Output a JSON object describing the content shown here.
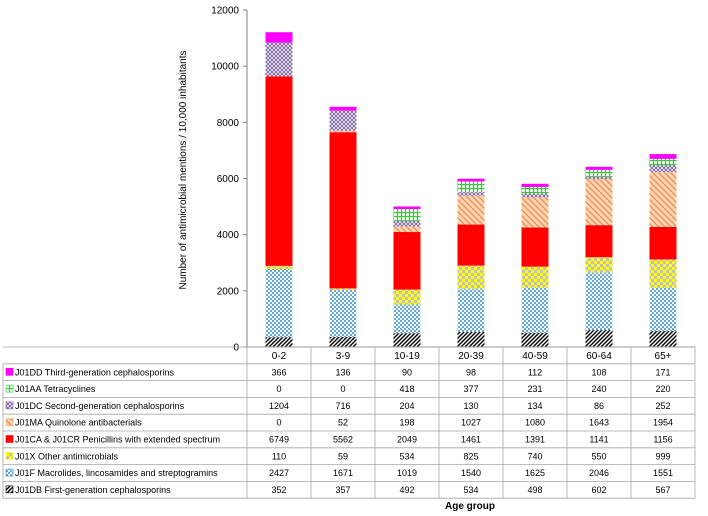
{
  "chart_data": {
    "type": "bar",
    "stacked": true,
    "xlabel": "Age group",
    "ylabel": "Number of antimicrobial mentions / 10,000 inhabitants",
    "ylim": [
      0,
      12000
    ],
    "yticks": [
      "0",
      "2000",
      "4000",
      "6000",
      "8000",
      "10000",
      "12000"
    ],
    "categories": [
      "0-2",
      "3-9",
      "10-19",
      "20-39",
      "40-59",
      "60-64",
      "65+"
    ],
    "legend_placement": "data table below chart",
    "series": [
      {
        "name": "J01DB First-generation cephalosporins",
        "color": "#000000",
        "pattern": "diagonal-hatch",
        "values": [
          352,
          357,
          492,
          534,
          498,
          602,
          567
        ]
      },
      {
        "name": "J01F Macrolides, lincosamides and streptogramins",
        "color": "#2c8ed6",
        "pattern": "dots",
        "values": [
          2427,
          1671,
          1019,
          1540,
          1625,
          2046,
          1551
        ]
      },
      {
        "name": "J01X Other antimicrobials",
        "color": "#ffff00",
        "pattern": "checker",
        "values": [
          110,
          59,
          534,
          825,
          740,
          550,
          999
        ]
      },
      {
        "name": "J01CA & J01CR Penicillins with extended spectrum",
        "color": "#ff0000",
        "pattern": "solid",
        "values": [
          6749,
          5562,
          2049,
          1461,
          1391,
          1141,
          1156
        ]
      },
      {
        "name": "J01MA Quinolone antibacterials",
        "color": "#f5a86e",
        "pattern": "diagonal-stripes",
        "values": [
          0,
          52,
          198,
          1027,
          1080,
          1643,
          1954
        ]
      },
      {
        "name": "J01DC Second-generation cephalosporins",
        "color": "#8064a2",
        "pattern": "crosshatch",
        "values": [
          1204,
          716,
          204,
          130,
          134,
          86,
          252
        ]
      },
      {
        "name": "J01AA Tetracyclines",
        "color": "#33cc33",
        "pattern": "grid",
        "values": [
          0,
          0,
          418,
          377,
          231,
          240,
          220
        ]
      },
      {
        "name": "J01DD Third-generation cephalosporins",
        "color": "#ff00ff",
        "pattern": "solid",
        "values": [
          366,
          136,
          90,
          98,
          112,
          108,
          171
        ]
      }
    ]
  }
}
